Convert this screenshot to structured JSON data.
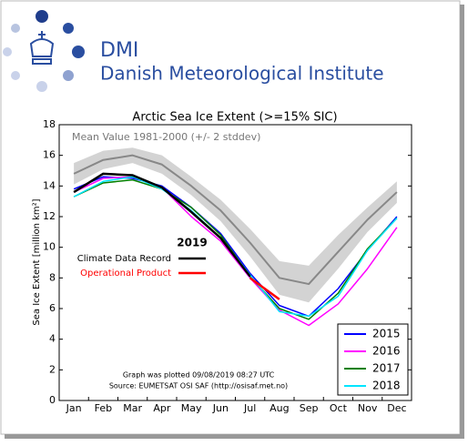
{
  "header": {
    "short_name": "DMI",
    "full_name": "Danish Meteorological Institute"
  },
  "chart_data": {
    "type": "line",
    "title": "Arctic Sea Ice Extent (>=15% SIC)",
    "subtitle": "Mean Value 1981-2000 (+/- 2 stddev)",
    "y_label": "Sea Ice Extent [million km²]",
    "categories": [
      "Jan",
      "Feb",
      "Mar",
      "Apr",
      "May",
      "Jun",
      "Jul",
      "Aug",
      "Sep",
      "Oct",
      "Nov",
      "Dec"
    ],
    "ylim": [
      0,
      18
    ],
    "yticks": [
      0,
      2,
      4,
      6,
      8,
      10,
      12,
      14,
      16,
      18
    ],
    "mean": {
      "color": "#888888",
      "values": [
        14.8,
        15.7,
        16.0,
        15.4,
        14.0,
        12.4,
        10.3,
        8.0,
        7.6,
        9.7,
        11.8,
        13.6
      ]
    },
    "band": {
      "color": "#d3d3d3",
      "upper": [
        15.5,
        16.3,
        16.5,
        16.0,
        14.6,
        13.1,
        11.2,
        9.1,
        8.8,
        10.8,
        12.6,
        14.3
      ],
      "lower": [
        14.1,
        15.1,
        15.5,
        14.8,
        13.4,
        11.7,
        9.4,
        6.9,
        6.4,
        8.6,
        11.0,
        12.9
      ]
    },
    "series": [
      {
        "name": "2015",
        "color": "#0000ff",
        "values": [
          13.8,
          14.6,
          14.5,
          14.0,
          12.6,
          10.9,
          8.3,
          6.2,
          5.5,
          7.3,
          9.8,
          12.0
        ]
      },
      {
        "name": "2016",
        "color": "#ff00ff",
        "values": [
          13.6,
          14.5,
          14.6,
          13.9,
          12.0,
          10.4,
          8.0,
          5.9,
          4.9,
          6.3,
          8.6,
          11.3
        ]
      },
      {
        "name": "2017",
        "color": "#008000",
        "values": [
          13.3,
          14.2,
          14.4,
          13.8,
          12.6,
          10.8,
          8.1,
          6.0,
          5.3,
          7.0,
          9.9,
          11.9
        ]
      },
      {
        "name": "2018",
        "color": "#00e5ff",
        "values": [
          13.3,
          14.3,
          14.6,
          13.8,
          12.4,
          10.6,
          8.2,
          5.8,
          5.5,
          6.8,
          9.8,
          11.9
        ]
      }
    ],
    "record": {
      "title": "2019",
      "series": [
        {
          "name": "Climate Data Record",
          "color": "#000000",
          "values": [
            13.6,
            14.8,
            14.7,
            13.9,
            12.3,
            10.6,
            8.1,
            null,
            null,
            null,
            null,
            null
          ]
        },
        {
          "name": "Operational Product",
          "color": "#ff0000",
          "values": [
            null,
            null,
            null,
            null,
            null,
            null,
            8.0,
            6.6,
            null,
            null,
            null,
            null
          ]
        }
      ]
    },
    "notes": [
      "Graph was plotted 09/08/2019 08:27 UTC",
      "Source: EUMETSAT OSI SAF (http://osisaf.met.no)"
    ]
  }
}
